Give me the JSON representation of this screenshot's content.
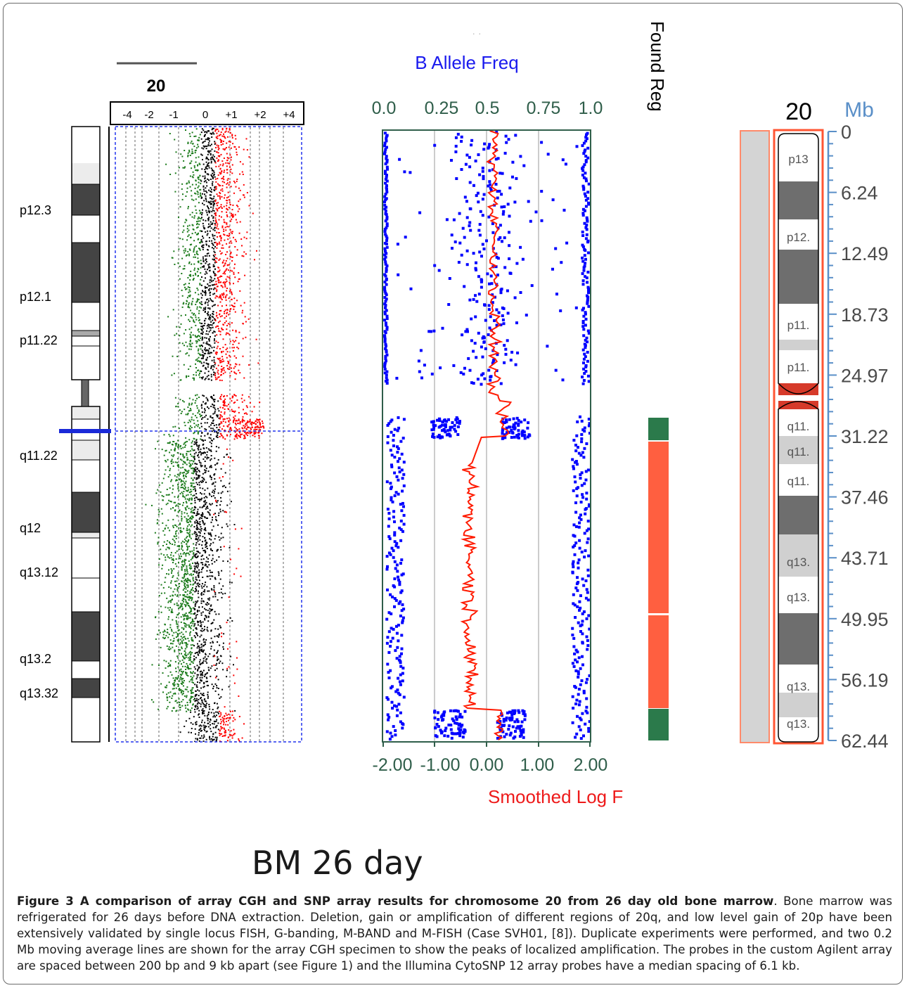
{
  "colors": {
    "gain": "#ff0000",
    "loss": "#1a7a1a",
    "neutral": "#000000",
    "baf_points": "#0000ff",
    "smoothed_line": "#ff0000",
    "found_region_loh": "#ff5f40",
    "found_region_normal": "#2b7a4b",
    "ideogram_highlight": "#ff5533",
    "mb_axis": "#5a8fc8"
  },
  "panel_a": {
    "chromosome_label": "20",
    "x_tick_labels": [
      "-4",
      "-2",
      "-1",
      "0",
      "+1",
      "+2",
      "+4"
    ],
    "band_labels": [
      "p12.3",
      "p12.1",
      "p11.22",
      "q11.22",
      "q12",
      "q13.12",
      "q13.2",
      "q13.32"
    ]
  },
  "panel_b": {
    "title_faint": "· ·",
    "top_axis_title": "B Allele Freq",
    "top_tick_labels": [
      "0.0",
      "0.25",
      "0.5",
      "0.75",
      "1.0"
    ],
    "bottom_tick_labels": [
      "-2.00",
      "-1.00",
      "0.00",
      "1.00",
      "2.00"
    ],
    "bottom_axis_title": "Smoothed Log F",
    "found_regions_header": "Found Reg"
  },
  "panel_c": {
    "chromosome_label": "20",
    "unit_label": "Mb",
    "mb_tick_labels": [
      "0",
      "6.24",
      "12.49",
      "18.73",
      "24.97",
      "31.22",
      "37.46",
      "43.71",
      "49.95",
      "56.19",
      "62.44"
    ],
    "band_labels": [
      "p13",
      "p12.",
      "p11.",
      "p11.",
      "q11.",
      "q11.",
      "q11.",
      "q13.",
      "q13.",
      "q13.",
      "q13."
    ]
  },
  "subtitle": "BM 26 day",
  "caption": {
    "bold": "Figure 3 A comparison of array CGH and SNP array results for chromosome 20 from 26 day old bone marrow",
    "text": ". Bone marrow was refrigerated for 26 days before DNA extraction. Deletion, gain or amplification of different regions of 20q, and low level gain of 20p have been extensively validated by single locus FISH, G-banding, M-BAND and M-FISH (Case SVH01, [8]). Duplicate experiments were performed, and two 0.2 Mb moving average lines are shown for the array CGH specimen to show the peaks of localized amplification. The probes in the custom Agilent array are spaced between 200 bp and 9 kb apart (see Figure 1) and the Illumina CytoSNP 12 array probes have a median spacing of 6.1 kb."
  }
}
